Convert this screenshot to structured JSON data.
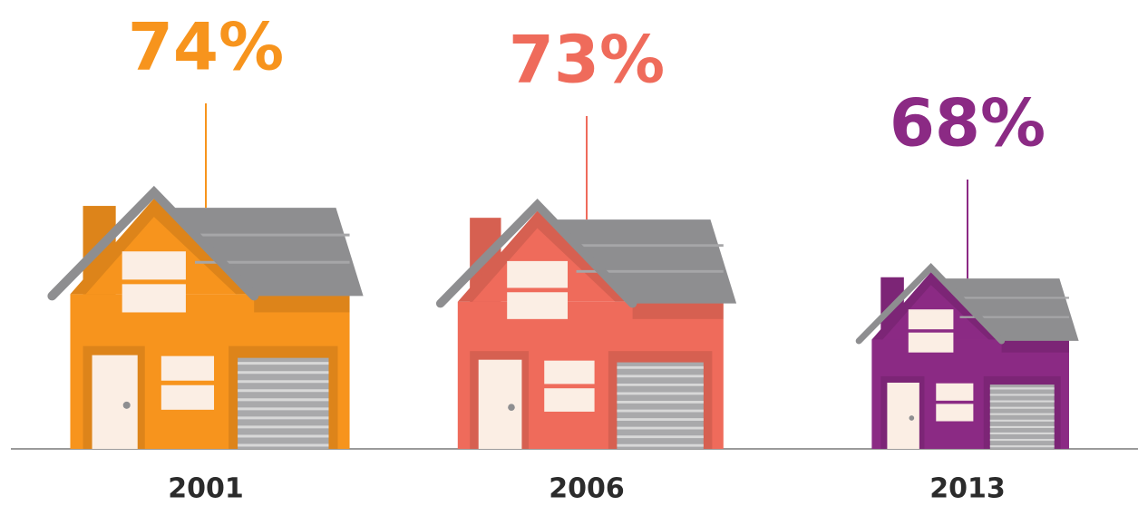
{
  "chart_data": {
    "type": "house",
    "categories": [
      "2001",
      "2006",
      "2013"
    ],
    "series": [
      {
        "colors": [
          "#f7941d",
          "#ef6b5b",
          "#8b2a84"
        ],
        "values": [
          74,
          73,
          68
        ],
        "value_labels": [
          "74%",
          "73%",
          "68%"
        ]
      }
    ]
  }
}
